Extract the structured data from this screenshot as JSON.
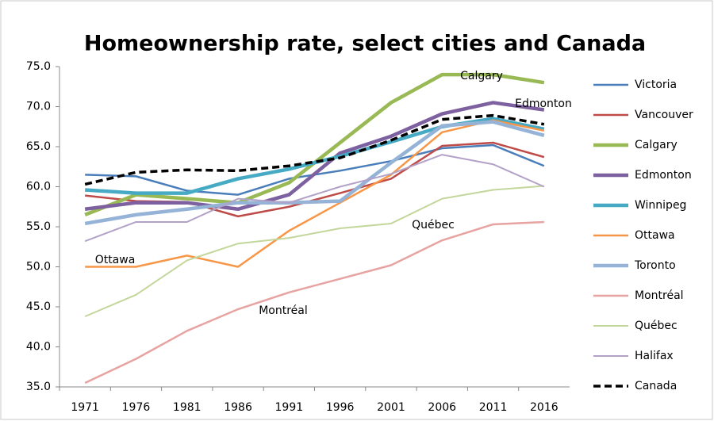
{
  "chart_data": {
    "type": "line",
    "title": "Homeownership rate, select cities and Canada",
    "categories": [
      "1971",
      "1976",
      "1981",
      "1986",
      "1991",
      "1996",
      "2001",
      "2006",
      "2011",
      "2016"
    ],
    "ylim": [
      35,
      75
    ],
    "yticks": [
      {
        "value": 35,
        "label": "35.0"
      },
      {
        "value": 40,
        "label": "40.0"
      },
      {
        "value": 45,
        "label": "45.0"
      },
      {
        "value": 50,
        "label": "50.0"
      },
      {
        "value": 55,
        "label": "55.0"
      },
      {
        "value": 60,
        "label": "60.0"
      },
      {
        "value": 65,
        "label": "65.0"
      },
      {
        "value": 70,
        "label": "70.0"
      },
      {
        "value": 75,
        "label": "75.0"
      }
    ],
    "grid": false,
    "legend": "right",
    "series": [
      {
        "name": "Victoria",
        "color": "#4a7ebb",
        "line_width": 2.5,
        "values": [
          61.5,
          61.3,
          59.5,
          59.0,
          61.0,
          62.0,
          63.2,
          64.8,
          65.2,
          62.6
        ]
      },
      {
        "name": "Vancouver",
        "color": "#be4b48",
        "line_width": 2.5,
        "values": [
          58.9,
          58.2,
          58.1,
          56.3,
          57.5,
          59.2,
          61.0,
          65.1,
          65.5,
          63.7
        ]
      },
      {
        "name": "Calgary",
        "color": "#98b954",
        "line_width": 4.5,
        "values": [
          56.5,
          59.0,
          58.5,
          58.0,
          60.5,
          65.5,
          70.5,
          74.0,
          74.0,
          73.0
        ]
      },
      {
        "name": "Edmonton",
        "color": "#7d60a0",
        "line_width": 4.5,
        "values": [
          57.2,
          58.0,
          58.0,
          57.2,
          59.0,
          64.2,
          66.3,
          69.1,
          70.5,
          69.6
        ]
      },
      {
        "name": "Winnipeg",
        "color": "#46aac5",
        "line_width": 4.5,
        "values": [
          59.6,
          59.2,
          59.2,
          61.0,
          62.2,
          63.8,
          65.6,
          67.5,
          68.5,
          67.2
        ]
      },
      {
        "name": "Ottawa",
        "color": "#f79646",
        "line_width": 2.5,
        "values": [
          50.0,
          50.0,
          51.4,
          50.0,
          54.5,
          58.0,
          61.5,
          66.8,
          68.3,
          67.0
        ]
      },
      {
        "name": "Toronto",
        "color": "#95b3d7",
        "line_width": 4.5,
        "values": [
          55.4,
          56.5,
          57.2,
          58.0,
          58.0,
          58.2,
          63.0,
          67.6,
          68.1,
          66.4
        ]
      },
      {
        "name": "Montréal",
        "color": "#e6a3a1",
        "line_width": 2.5,
        "values": [
          35.5,
          38.5,
          42.0,
          44.7,
          46.8,
          48.5,
          50.2,
          53.3,
          55.3,
          55.6
        ]
      },
      {
        "name": "Québec",
        "color": "#c3d69b",
        "line_width": 2,
        "values": [
          43.8,
          46.5,
          50.8,
          52.9,
          53.6,
          54.8,
          55.4,
          58.5,
          59.6,
          60.1
        ]
      },
      {
        "name": "Halifax",
        "color": "#b3a2c7",
        "line_width": 2,
        "values": [
          53.2,
          55.6,
          55.6,
          58.5,
          58.0,
          60.0,
          61.6,
          64.0,
          62.8,
          60.0
        ]
      },
      {
        "name": "Canada",
        "color": "#000000",
        "line_width": 3.5,
        "dashed": true,
        "values": [
          60.3,
          61.8,
          62.1,
          62.0,
          62.6,
          63.6,
          65.8,
          68.4,
          68.9,
          67.8
        ]
      }
    ],
    "annotations": [
      "Calgary",
      "Edmonton",
      "Ottawa",
      "Montréal",
      "Québec"
    ]
  }
}
